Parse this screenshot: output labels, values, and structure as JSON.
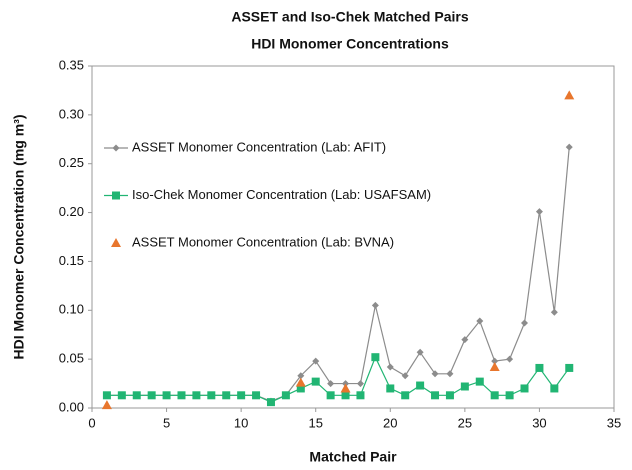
{
  "chart_data": {
    "type": "line",
    "title": "ASSET and Iso-Chek Matched Pairs",
    "subtitle": "HDI Monomer Concentrations",
    "x_label": "Matched Pair",
    "y_label": "HDI Monomer Concentration  (mg m³)",
    "xlim": [
      0,
      35
    ],
    "xticks": [
      0,
      5,
      10,
      15,
      20,
      25,
      30,
      35
    ],
    "ylim": [
      0,
      0.35
    ],
    "yticks": [
      {
        "value": 0,
        "label": "0.00"
      },
      {
        "value": 0.05,
        "label": "0.05"
      },
      {
        "value": 0.1,
        "label": "0.10"
      },
      {
        "value": 0.15,
        "label": "0.15"
      },
      {
        "value": 0.2,
        "label": "0.20"
      },
      {
        "value": 0.25,
        "label": "0.25"
      },
      {
        "value": 0.3,
        "label": "0.30"
      },
      {
        "value": 0.35,
        "label": "0.35"
      }
    ],
    "grid": false,
    "legend": "upper left",
    "series": [
      {
        "name": "ASSET Monomer Concentration (Lab: AFIT)",
        "color": "#8c8c8c",
        "marker": "diamond",
        "show_line": true,
        "x": [
          1,
          2,
          3,
          4,
          5,
          6,
          7,
          8,
          9,
          10,
          11,
          12,
          13,
          14,
          15,
          16,
          17,
          18,
          19,
          20,
          21,
          22,
          23,
          24,
          25,
          26,
          27,
          28,
          29,
          30,
          31,
          32
        ],
        "values": [
          0.013,
          0.013,
          0.013,
          0.013,
          0.013,
          0.013,
          0.013,
          0.013,
          0.013,
          0.013,
          0.013,
          0.007,
          0.013,
          0.033,
          0.048,
          0.025,
          0.025,
          0.025,
          0.105,
          0.042,
          0.033,
          0.057,
          0.035,
          0.035,
          0.07,
          0.089,
          0.048,
          0.05,
          0.087,
          0.201,
          0.098,
          0.267
        ]
      },
      {
        "name": "Iso-Chek Monomer Concentration (Lab: USAFSAM)",
        "color": "#21b573",
        "marker": "square",
        "show_line": true,
        "x": [
          1,
          2,
          3,
          4,
          5,
          6,
          7,
          8,
          9,
          10,
          11,
          12,
          13,
          14,
          15,
          16,
          17,
          18,
          19,
          20,
          21,
          22,
          23,
          24,
          25,
          26,
          27,
          28,
          29,
          30,
          31,
          32
        ],
        "values": [
          0.013,
          0.013,
          0.013,
          0.013,
          0.013,
          0.013,
          0.013,
          0.013,
          0.013,
          0.013,
          0.013,
          0.006,
          0.013,
          0.02,
          0.027,
          0.013,
          0.013,
          0.013,
          0.052,
          0.02,
          0.013,
          0.023,
          0.013,
          0.013,
          0.022,
          0.027,
          0.013,
          0.013,
          0.02,
          0.041,
          0.02,
          0.041
        ]
      },
      {
        "name": "ASSET Monomer Concentration (Lab: BVNA)",
        "color": "#e8762d",
        "marker": "triangle",
        "show_line": false,
        "x": [
          1,
          14,
          17,
          27,
          32
        ],
        "values": [
          0.003,
          0.026,
          0.02,
          0.042,
          0.32
        ]
      }
    ]
  }
}
